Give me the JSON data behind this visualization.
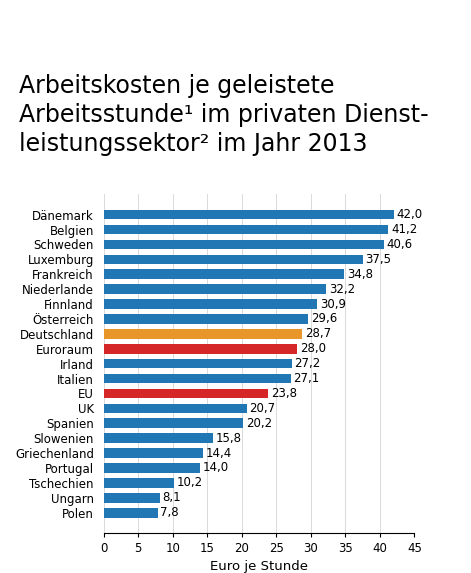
{
  "title_lines": [
    "Arbeitskosten je geleistete",
    "Arbeitsstunde¹ im privaten Dienst-",
    "leistungssektor² im Jahr 2013"
  ],
  "categories": [
    "Polen",
    "Ungarn",
    "Tschechien",
    "Portugal",
    "Griechenland",
    "Slowenien",
    "Spanien",
    "UK",
    "EU",
    "Italien",
    "Irland",
    "Euroraum",
    "Deutschland",
    "Österreich",
    "Finnland",
    "Niederlande",
    "Frankreich",
    "Luxemburg",
    "Schweden",
    "Belgien",
    "Dänemark"
  ],
  "values": [
    7.8,
    8.1,
    10.2,
    14.0,
    14.4,
    15.8,
    20.2,
    20.7,
    23.8,
    27.1,
    27.2,
    28.0,
    28.7,
    29.6,
    30.9,
    32.2,
    34.8,
    37.5,
    40.6,
    41.2,
    42.0
  ],
  "colors": [
    "#2077b4",
    "#2077b4",
    "#2077b4",
    "#2077b4",
    "#2077b4",
    "#2077b4",
    "#2077b4",
    "#2077b4",
    "#d62728",
    "#2077b4",
    "#2077b4",
    "#d62728",
    "#e8962a",
    "#2077b4",
    "#2077b4",
    "#2077b4",
    "#2077b4",
    "#2077b4",
    "#2077b4",
    "#2077b4",
    "#2077b4"
  ],
  "labels": [
    "7,8",
    "8,1",
    "10,2",
    "14,0",
    "14,4",
    "15,8",
    "20,2",
    "20,7",
    "23,8",
    "27,1",
    "27,2",
    "28,0",
    "28,7",
    "29,6",
    "30,9",
    "32,2",
    "34,8",
    "37,5",
    "40,6",
    "41,2",
    "42,0"
  ],
  "xlabel": "Euro je Stunde",
  "xlim": [
    0,
    45
  ],
  "xticks": [
    0,
    5,
    10,
    15,
    20,
    25,
    30,
    35,
    40,
    45
  ],
  "background_color": "#ffffff",
  "bar_height": 0.65,
  "title_fontsize": 17,
  "label_fontsize": 8.5,
  "tick_fontsize": 8.5,
  "xlabel_fontsize": 9.5
}
